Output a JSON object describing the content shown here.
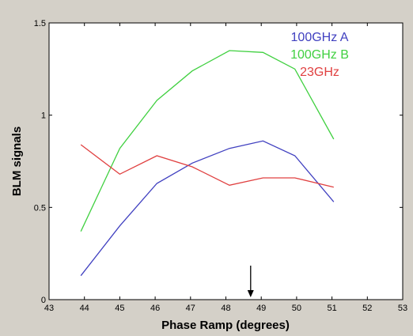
{
  "chart_data": {
    "type": "line",
    "xlabel": "Phase Ramp (degrees)",
    "ylabel": "BLM signals",
    "xlim": [
      43,
      53
    ],
    "ylim": [
      0,
      1.5
    ],
    "x_ticks": [
      "43",
      "44",
      "45",
      "46",
      "47",
      "48",
      "49",
      "50",
      "51",
      "52",
      "53"
    ],
    "y_ticks": [
      "0",
      "0.5",
      "1",
      "1.5"
    ],
    "x": [
      43.9,
      45.0,
      46.05,
      47.05,
      48.1,
      49.05,
      49.95,
      51.05
    ],
    "series": [
      {
        "name": "100GHz A",
        "color": "#4040c0",
        "values": [
          0.13,
          0.4,
          0.63,
          0.74,
          0.82,
          0.86,
          0.78,
          0.53
        ]
      },
      {
        "name": "100GHz B",
        "color": "#40d040",
        "values": [
          0.37,
          0.82,
          1.08,
          1.24,
          1.35,
          1.34,
          1.25,
          0.87
        ]
      },
      {
        "name": "23GHz",
        "color": "#e04040",
        "values": [
          0.84,
          0.68,
          0.78,
          0.72,
          0.62,
          0.66,
          0.66,
          0.61
        ]
      }
    ],
    "annotation": {
      "type": "arrow",
      "x": 48.7,
      "direction": "down"
    },
    "grid": false,
    "legend_position": "top-right"
  }
}
